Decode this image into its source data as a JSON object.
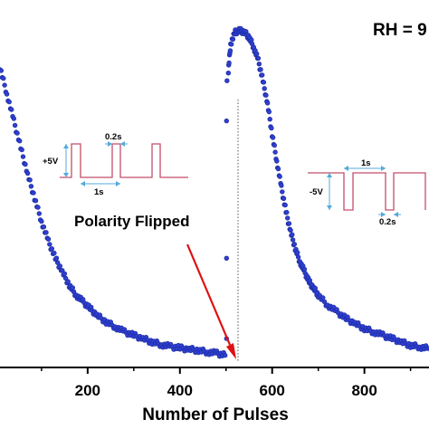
{
  "chart_data": {
    "type": "scatter",
    "title": "",
    "xlabel": "Number of Pulses",
    "ylabel": "",
    "xlim": [
      10,
      940
    ],
    "ylim": [
      0,
      1
    ],
    "x_ticks": [
      200,
      400,
      600,
      800
    ],
    "x_tick_labels": [
      "200",
      "400",
      "600",
      "800"
    ],
    "grid": false,
    "legend": "none",
    "marker_color": "#2f3fd0",
    "marker_edge_color": "#1a2a9a",
    "series": [
      {
        "x": [
          10,
          25,
          40,
          55,
          70,
          85,
          100,
          115,
          130,
          145,
          160,
          175,
          190,
          205,
          220,
          240,
          260,
          280,
          300,
          320,
          340,
          360,
          380,
          400,
          420,
          440,
          460,
          480,
          498
        ],
        "y": [
          0.88,
          0.8,
          0.72,
          0.64,
          0.56,
          0.49,
          0.42,
          0.36,
          0.31,
          0.27,
          0.23,
          0.2,
          0.18,
          0.16,
          0.14,
          0.12,
          0.105,
          0.09,
          0.08,
          0.07,
          0.06,
          0.052,
          0.046,
          0.042,
          0.038,
          0.035,
          0.03,
          0.026,
          0.02
        ]
      },
      {
        "x": [
          501,
          501,
          501,
          502
        ],
        "y": [
          0.07,
          0.31,
          0.72,
          0.84
        ]
      },
      {
        "x": [
          505,
          510,
          520,
          530,
          540,
          550,
          560,
          570,
          580,
          590,
          600,
          610,
          620,
          630,
          640,
          650,
          660,
          670,
          680,
          690,
          700,
          720,
          740,
          760,
          780,
          800,
          820,
          840,
          860,
          880,
          900,
          920,
          940
        ],
        "y": [
          0.87,
          0.95,
          0.985,
          0.99,
          0.985,
          0.97,
          0.94,
          0.9,
          0.84,
          0.77,
          0.68,
          0.6,
          0.52,
          0.45,
          0.39,
          0.34,
          0.3,
          0.27,
          0.24,
          0.22,
          0.2,
          0.17,
          0.15,
          0.13,
          0.115,
          0.1,
          0.09,
          0.08,
          0.07,
          0.06,
          0.05,
          0.045,
          0.04
        ]
      }
    ]
  },
  "annotations": {
    "rh_label": "RH = 9",
    "polarity_label": "Polarity Flipped",
    "inset_left": {
      "amplitude": "+5V",
      "width": "0.2s",
      "period": "1s"
    },
    "inset_right": {
      "amplitude": "-5V",
      "period": "1s",
      "width": "0.2s"
    }
  },
  "colors": {
    "arrow": "#e01010",
    "pulse_trace": "#c44e6a",
    "dimension_marks": "#55a9dd",
    "divider": "#555555"
  }
}
